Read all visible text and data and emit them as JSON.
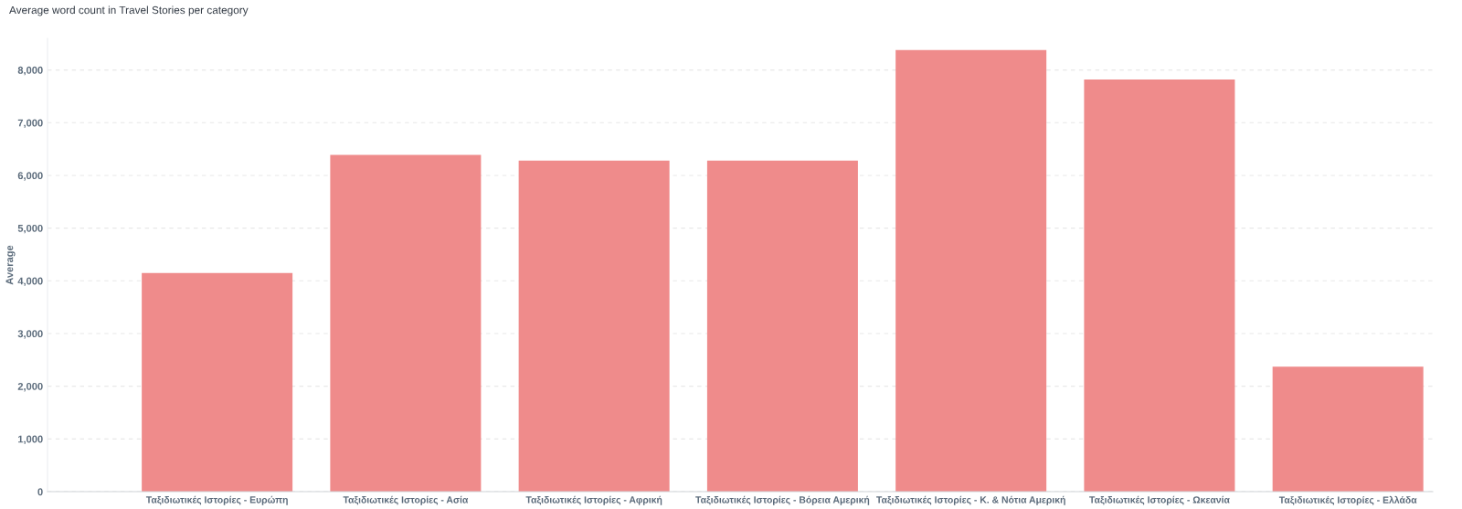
{
  "chart_data": {
    "type": "bar",
    "title": "Average word count in Travel Stories per category",
    "ylabel": "Average",
    "categories": [
      "Ταξιδιωτικές Ιστορίες - Ευρώπη",
      "Ταξιδιωτικές Ιστορίες - Ασία",
      "Ταξιδιωτικές Ιστορίες - Αφρική",
      "Ταξιδιωτικές Ιστορίες - Βόρεια Αμερική",
      "Ταξιδιωτικές Ιστορίες - Κ. & Νότια Αμερική",
      "Ταξιδιωτικές Ιστορίες - Ωκεανία",
      "Ταξιδιωτικές Ιστορίες - Ελλάδα"
    ],
    "values": [
      4150,
      6390,
      6280,
      6280,
      8380,
      7820,
      2370
    ],
    "color": "#ef8b8b",
    "ylim": [
      0,
      8600
    ],
    "yticks": [
      {
        "value": 0,
        "label": "0"
      },
      {
        "value": 1000,
        "label": "1,000"
      },
      {
        "value": 2000,
        "label": "2,000"
      },
      {
        "value": 3000,
        "label": "3,000"
      },
      {
        "value": 4000,
        "label": "4,000"
      },
      {
        "value": 5000,
        "label": "5,000"
      },
      {
        "value": 6000,
        "label": "6,000"
      },
      {
        "value": 7000,
        "label": "7,000"
      },
      {
        "value": 8000,
        "label": "8,000"
      }
    ],
    "grid": "y",
    "legend": false
  }
}
